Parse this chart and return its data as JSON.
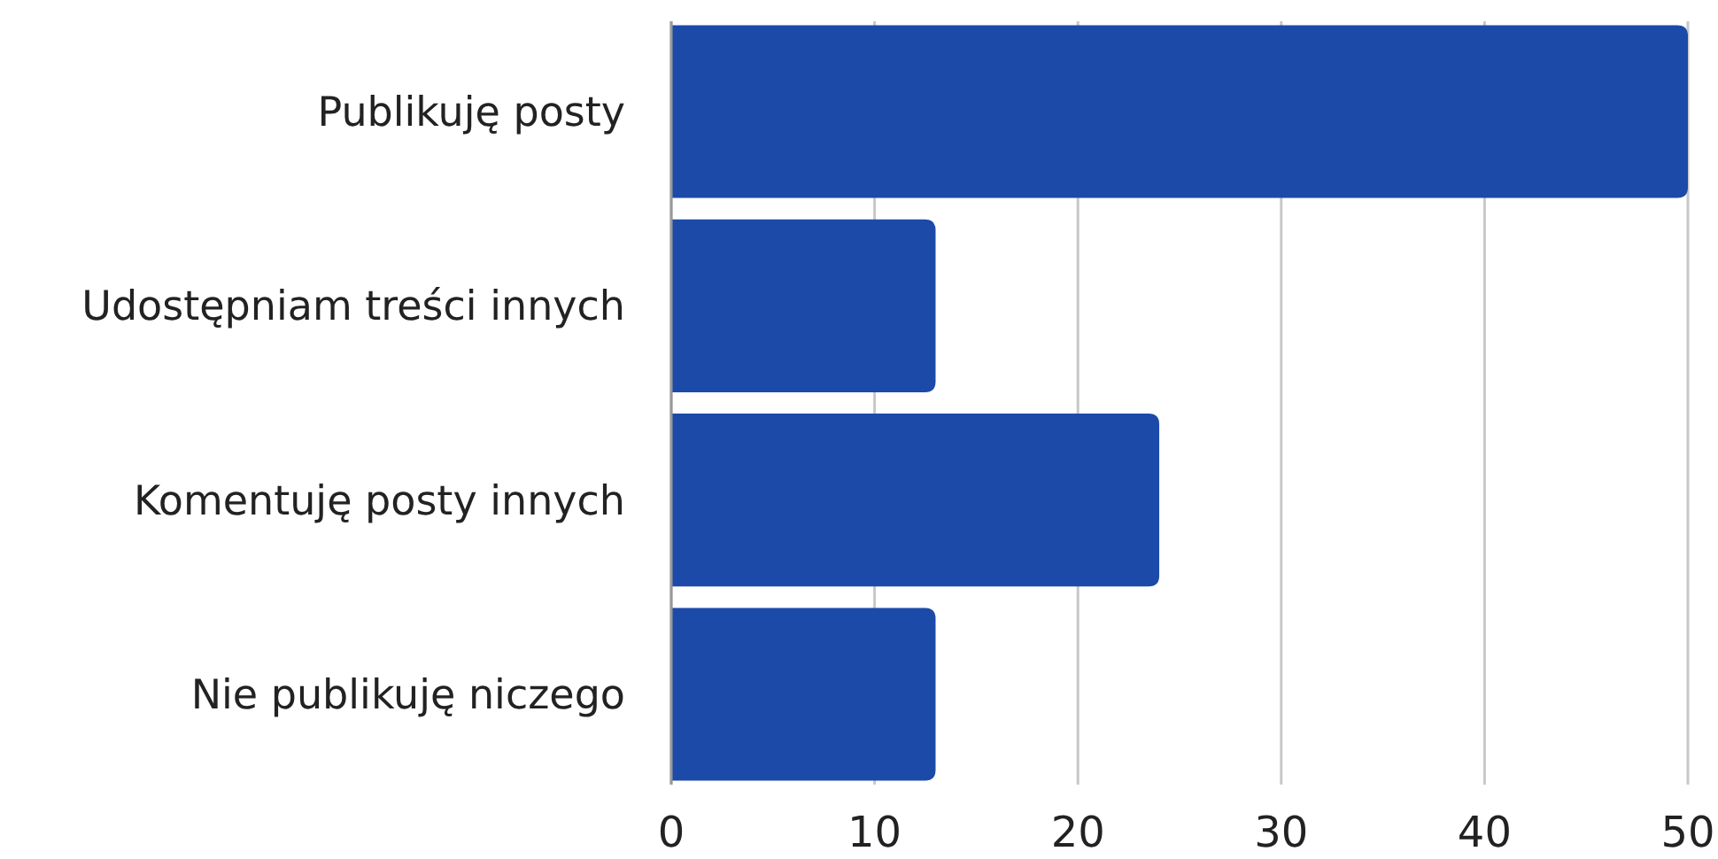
{
  "chart_data": {
    "type": "bar",
    "orientation": "horizontal",
    "categories": [
      "Publikuję posty",
      "Udostępniam treści innych",
      "Komentuję posty innych",
      "Nie publikuję niczego"
    ],
    "values": [
      50,
      13,
      24,
      13
    ],
    "color": "#1c4aa9",
    "xlim": [
      0,
      50
    ],
    "xticks": [
      0,
      10,
      20,
      30,
      40,
      50
    ],
    "grid": "x"
  }
}
